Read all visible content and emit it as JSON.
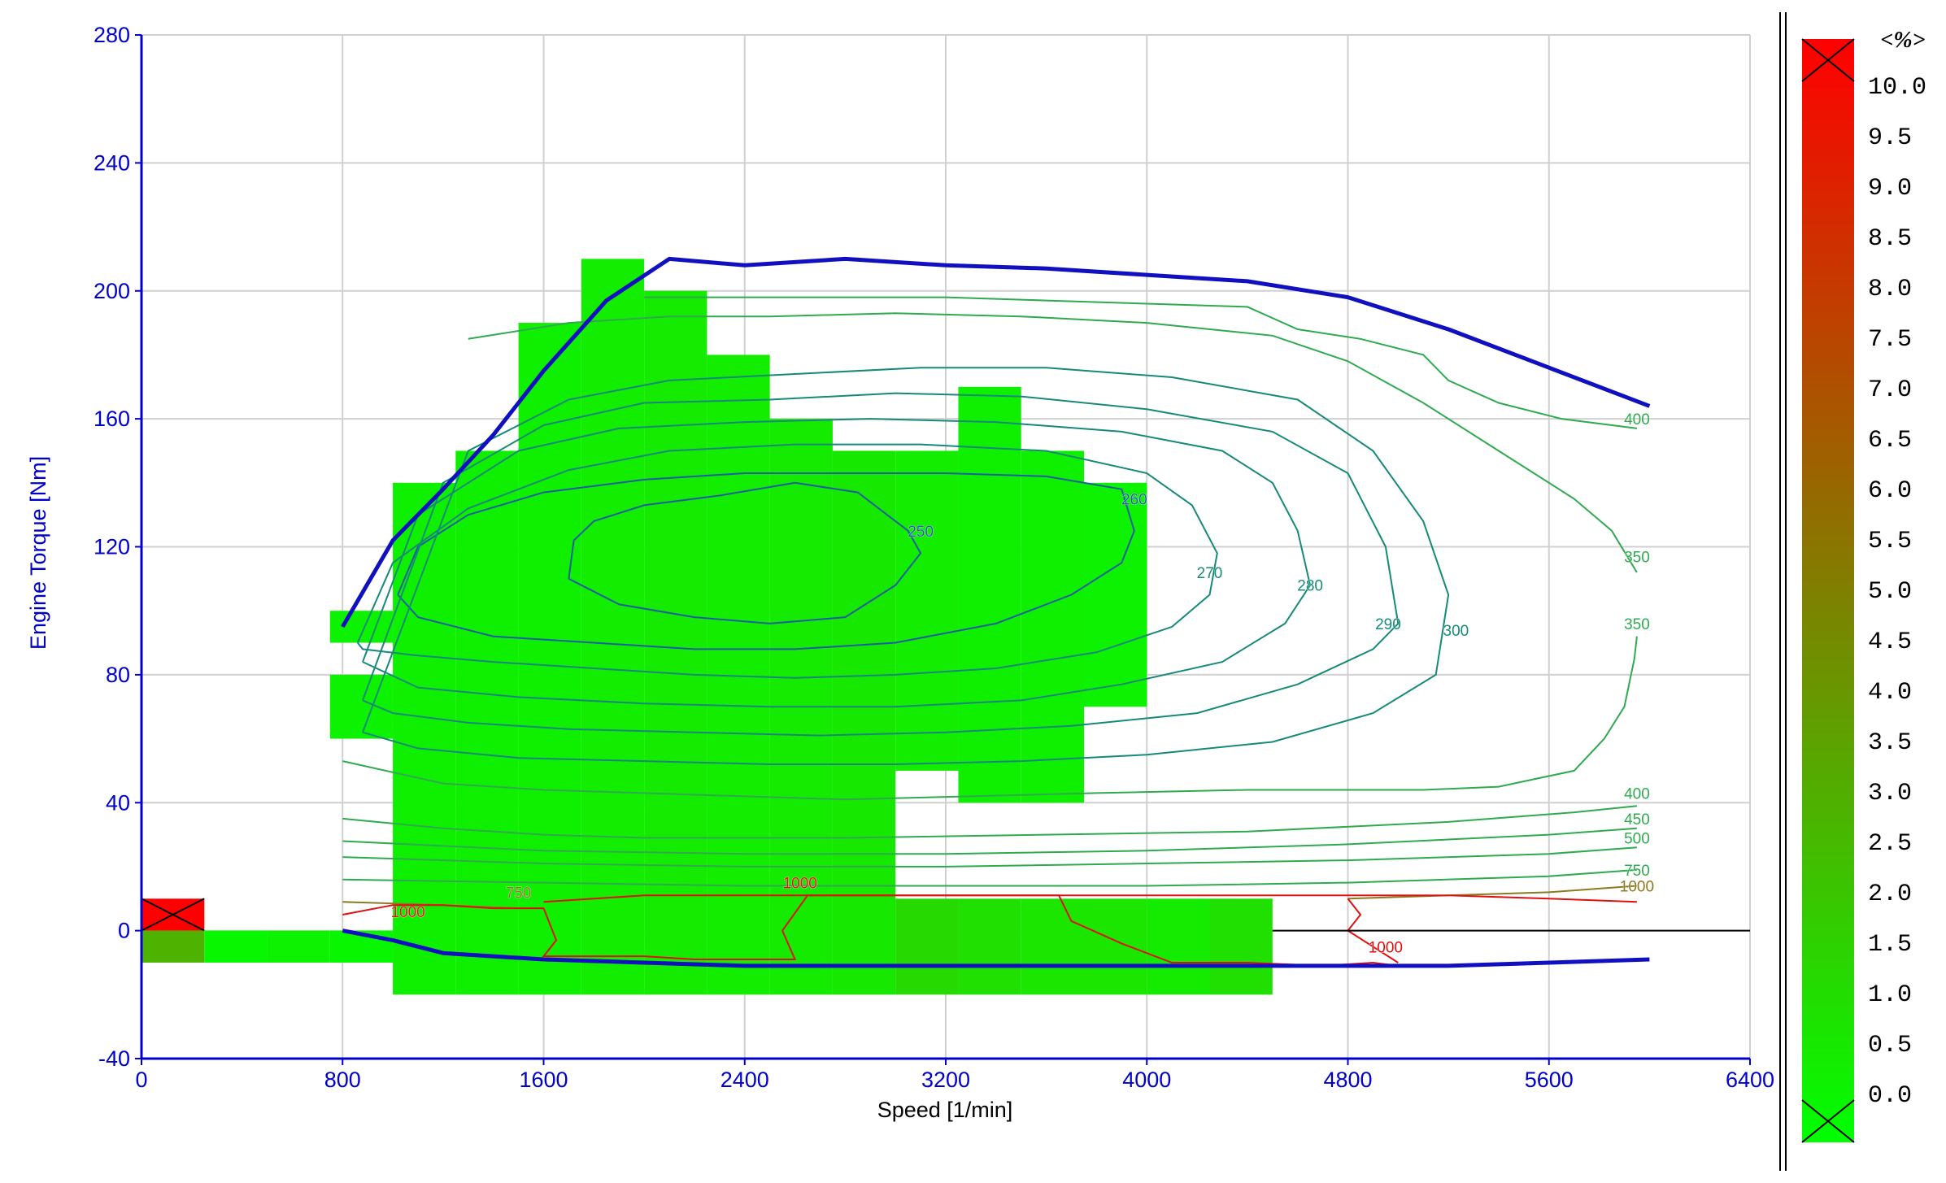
{
  "colors": {
    "axis": "#0000cc",
    "grid": "#d0d0d0",
    "boundary": "#1010c0",
    "zero_line": "#000000",
    "cell_low": "#00ff00",
    "cell_high": "#ff0000",
    "contour_green": "#2faa50",
    "contour_teal": "#168a78",
    "contour_blue": "#1b5fa0",
    "contour_red": "#e01010",
    "contour_olive": "#8a7a20"
  },
  "chart_data": {
    "type": "heatmap",
    "xlabel": "Speed [1/min]",
    "ylabel": "Engine Torque [Nm]",
    "xlim": [
      0,
      6400
    ],
    "ylim": [
      -40,
      280
    ],
    "xticks": [
      "0",
      "800",
      "1600",
      "2400",
      "3200",
      "4000",
      "4800",
      "5600",
      "6400"
    ],
    "yticks": [
      "-40",
      "0",
      "40",
      "80",
      "120",
      "160",
      "200",
      "240",
      "280"
    ],
    "grid": true,
    "color_scale": {
      "unit_label": "<%>",
      "labels": [
        "10.0",
        "9.5",
        "9.0",
        "8.5",
        "8.0",
        "7.5",
        "7.0",
        "6.5",
        "6.0",
        "5.5",
        "5.0",
        "4.5",
        "4.0",
        "3.5",
        "3.0",
        "2.5",
        "2.0",
        "1.5",
        "1.0",
        "0.5",
        "0.0"
      ],
      "min": 0,
      "max": 10
    },
    "cells": [
      {
        "x0": 0,
        "x1": 250,
        "y0": 0,
        "y1": 10,
        "value": 10.0
      },
      {
        "x0": 0,
        "x1": 250,
        "y0": -10,
        "y1": 0,
        "value": 3.0
      },
      {
        "x0": 250,
        "x1": 500,
        "y0": -10,
        "y1": 0,
        "value": 0.3
      },
      {
        "x0": 500,
        "x1": 750,
        "y0": -10,
        "y1": 0,
        "value": 0.5
      },
      {
        "x0": 750,
        "x1": 1000,
        "y0": -10,
        "y1": 0,
        "value": 0.3
      },
      {
        "x0": 750,
        "x1": 1000,
        "y0": 90,
        "y1": 100,
        "value": 0.5
      },
      {
        "x0": 750,
        "x1": 1000,
        "y0": 60,
        "y1": 80,
        "value": 0.5
      },
      {
        "x0": 1000,
        "x1": 1250,
        "y0": -20,
        "y1": 140,
        "value": 0.6
      },
      {
        "x0": 1250,
        "x1": 1500,
        "y0": -20,
        "y1": 150,
        "value": 0.6
      },
      {
        "x0": 1500,
        "x1": 1750,
        "y0": -20,
        "y1": 190,
        "value": 0.6
      },
      {
        "x0": 1750,
        "x1": 2000,
        "y0": -20,
        "y1": 210,
        "value": 0.7
      },
      {
        "x0": 2000,
        "x1": 2250,
        "y0": -20,
        "y1": 200,
        "value": 0.8
      },
      {
        "x0": 2250,
        "x1": 2500,
        "y0": -20,
        "y1": 180,
        "value": 0.7
      },
      {
        "x0": 2500,
        "x1": 2750,
        "y0": -20,
        "y1": 160,
        "value": 0.8
      },
      {
        "x0": 2750,
        "x1": 3000,
        "y0": -20,
        "y1": 150,
        "value": 0.9
      },
      {
        "x0": 3000,
        "x1": 3250,
        "y0": -20,
        "y1": 10,
        "value": 1.5
      },
      {
        "x0": 3000,
        "x1": 3250,
        "y0": 50,
        "y1": 150,
        "value": 0.7
      },
      {
        "x0": 3250,
        "x1": 3500,
        "y0": -20,
        "y1": 10,
        "value": 1.2
      },
      {
        "x0": 3250,
        "x1": 3500,
        "y0": 40,
        "y1": 170,
        "value": 0.6
      },
      {
        "x0": 3500,
        "x1": 3750,
        "y0": -20,
        "y1": 10,
        "value": 1.0
      },
      {
        "x0": 3500,
        "x1": 3750,
        "y0": 40,
        "y1": 150,
        "value": 0.6
      },
      {
        "x0": 3750,
        "x1": 4000,
        "y0": -20,
        "y1": 10,
        "value": 1.0
      },
      {
        "x0": 3750,
        "x1": 4000,
        "y0": 70,
        "y1": 140,
        "value": 0.5
      },
      {
        "x0": 4000,
        "x1": 4250,
        "y0": -20,
        "y1": 10,
        "value": 0.8
      },
      {
        "x0": 4250,
        "x1": 4500,
        "y0": -20,
        "y1": 10,
        "value": 1.2
      }
    ],
    "boundary_lines": [
      {
        "x": [
          800,
          1000,
          1200,
          1400,
          1600,
          1850,
          2100,
          2400,
          2800,
          3200,
          3600,
          4000,
          4400,
          4800,
          5200,
          5600,
          6000
        ],
        "y": [
          95,
          122,
          138,
          155,
          175,
          197,
          210,
          208,
          210,
          208,
          207,
          205,
          203,
          198,
          188,
          176,
          164
        ]
      },
      {
        "x": [
          800,
          1000,
          1200,
          1600,
          2000,
          2400,
          3200,
          4000,
          4800,
          5200,
          5600,
          6000
        ],
        "y": [
          0,
          -3,
          -7,
          -9,
          -10,
          -11,
          -11,
          -11,
          -11,
          -11,
          -10,
          -9
        ]
      }
    ],
    "zero_line": {
      "x": [
        4500,
        6400
      ],
      "y": [
        0,
        0
      ]
    },
    "contours": [
      {
        "label": "250",
        "color": "contour_blue",
        "label_x": 3100,
        "label_y": 125,
        "x": [
          1700,
          1720,
          1800,
          2000,
          2300,
          2600,
          2850,
          3050,
          3100,
          3000,
          2800,
          2500,
          2200,
          1900,
          1700
        ],
        "y": [
          110,
          122,
          128,
          133,
          136,
          140,
          137,
          125,
          118,
          108,
          98,
          96,
          98,
          102,
          110
        ]
      },
      {
        "label": "260",
        "color": "contour_blue",
        "label_x": 3950,
        "label_y": 135,
        "x": [
          1020,
          1100,
          1300,
          1600,
          2000,
          2400,
          2800,
          3200,
          3600,
          3900,
          3950,
          3900,
          3700,
          3400,
          3000,
          2600,
          2200,
          1800,
          1400,
          1100,
          1020
        ],
        "y": [
          105,
          120,
          130,
          137,
          141,
          143,
          143,
          143,
          142,
          138,
          125,
          115,
          105,
          96,
          90,
          88,
          88,
          90,
          92,
          98,
          105
        ]
      },
      {
        "label": "270",
        "color": "contour_teal",
        "label_x": 4250,
        "label_y": 112,
        "x": [
          860,
          1000,
          1300,
          1700,
          2100,
          2600,
          3100,
          3600,
          4000,
          4180,
          4280,
          4250,
          4100,
          3800,
          3400,
          3000,
          2600,
          2200,
          1800,
          1400,
          1100,
          880,
          860
        ],
        "y": [
          90,
          115,
          132,
          144,
          150,
          152,
          152,
          150,
          143,
          133,
          118,
          105,
          95,
          87,
          82,
          80,
          79,
          80,
          82,
          84,
          86,
          88,
          90
        ]
      },
      {
        "label": "280",
        "color": "contour_teal",
        "label_x": 4650,
        "label_y": 108,
        "x": [
          880,
          1100,
          1500,
          1900,
          2400,
          2900,
          3400,
          3900,
          4300,
          4500,
          4600,
          4650,
          4550,
          4300,
          3900,
          3500,
          3000,
          2500,
          2000,
          1500,
          1100,
          880
        ],
        "y": [
          84,
          130,
          150,
          157,
          159,
          160,
          159,
          156,
          150,
          140,
          125,
          108,
          96,
          84,
          77,
          72,
          70,
          70,
          71,
          73,
          76,
          84
        ]
      },
      {
        "label": "290",
        "color": "contour_teal",
        "label_x": 4960,
        "label_y": 96,
        "x": [
          880,
          1200,
          1600,
          2000,
          2500,
          3000,
          3500,
          4000,
          4500,
          4800,
          4950,
          5000,
          4900,
          4600,
          4200,
          3700,
          3200,
          2700,
          2200,
          1700,
          1300,
          1000,
          880
        ],
        "y": [
          72,
          140,
          158,
          165,
          166,
          168,
          167,
          163,
          156,
          143,
          120,
          96,
          88,
          77,
          68,
          64,
          62,
          61,
          62,
          63,
          65,
          68,
          72
        ]
      },
      {
        "label": "300",
        "color": "contour_teal",
        "label_x": 5230,
        "label_y": 94,
        "x": [
          880,
          1300,
          1700,
          2100,
          2600,
          3100,
          3600,
          4100,
          4600,
          4900,
          5100,
          5200,
          5150,
          4900,
          4500,
          4000,
          3500,
          3000,
          2500,
          2000,
          1500,
          1100,
          880
        ],
        "y": [
          62,
          150,
          166,
          172,
          174,
          176,
          176,
          173,
          166,
          150,
          128,
          105,
          80,
          68,
          59,
          55,
          53,
          52,
          52,
          53,
          54,
          57,
          62
        ]
      },
      {
        "label": "350",
        "color": "contour_green",
        "label_x": 5950,
        "label_y": 96,
        "x": [
          800,
          1200,
          1600,
          2000,
          2400,
          2800,
          3300,
          3800,
          4400,
          4800,
          5100,
          5400,
          5700,
          5820,
          5900,
          5940,
          5950
        ],
        "y": [
          53,
          46,
          44,
          43,
          42,
          41,
          42,
          43,
          44,
          44,
          44,
          45,
          50,
          60,
          70,
          85,
          92
        ]
      },
      {
        "label": "350",
        "color": "contour_green",
        "label_x": 5950,
        "label_y": 117,
        "x": [
          1300,
          1700,
          2100,
          2500,
          3000,
          3500,
          4000,
          4500,
          4800,
          5100,
          5400,
          5700,
          5850,
          5950
        ],
        "y": [
          185,
          190,
          192,
          192,
          193,
          192,
          190,
          186,
          178,
          165,
          150,
          135,
          125,
          112
        ]
      },
      {
        "label": "400",
        "color": "contour_green",
        "label_x": 5950,
        "label_y": 160,
        "x": [
          2000,
          2400,
          2800,
          3200,
          3600,
          4000,
          4400,
          4600,
          4850,
          5100,
          5200,
          5400,
          5650,
          5950
        ],
        "y": [
          198,
          198,
          198,
          198,
          197,
          196,
          195,
          188,
          185,
          180,
          172,
          165,
          160,
          157
        ]
      },
      {
        "label": "400",
        "color": "contour_green",
        "label_x": 5950,
        "label_y": 43,
        "x": [
          800,
          1200,
          1600,
          2000,
          2800,
          3600,
          4400,
          5200,
          5700,
          5950
        ],
        "y": [
          35,
          32,
          30,
          29,
          29,
          30,
          31,
          34,
          37,
          39
        ]
      },
      {
        "label": "450",
        "color": "contour_green",
        "label_x": 5950,
        "label_y": 35,
        "x": [
          800,
          1600,
          2400,
          3200,
          4000,
          4800,
          5600,
          5950
        ],
        "y": [
          28,
          25,
          24,
          24,
          25,
          27,
          30,
          32
        ]
      },
      {
        "label": "500",
        "color": "contour_green",
        "label_x": 5950,
        "label_y": 29,
        "x": [
          800,
          1600,
          2400,
          3200,
          4000,
          4800,
          5600,
          5950
        ],
        "y": [
          23,
          21,
          20,
          20,
          21,
          22,
          24,
          26
        ]
      },
      {
        "label": "750",
        "color": "contour_green",
        "label_x": 5950,
        "label_y": 19,
        "x": [
          800,
          1600,
          2400,
          3200,
          4000,
          4800,
          5600,
          5950
        ],
        "y": [
          16,
          15,
          14,
          14,
          14,
          15,
          17,
          19
        ]
      },
      {
        "label": "750",
        "color": "contour_olive",
        "label_x": 1500,
        "label_y": 12,
        "x": [
          800,
          1200,
          1500,
          1600
        ],
        "y": [
          9,
          8,
          7,
          7
        ]
      },
      {
        "label": "1000",
        "color": "contour_olive",
        "label_x": 5950,
        "label_y": 14,
        "x": [
          4800,
          5200,
          5600,
          5950
        ],
        "y": [
          10,
          11,
          12,
          14
        ]
      },
      {
        "label": "1000",
        "color": "contour_red",
        "label_x": 1060,
        "label_y": 6,
        "x": [
          800,
          1000,
          1200,
          1400,
          1600,
          1650,
          1600,
          1800,
          2000,
          2200,
          2600,
          2550,
          2650,
          2950,
          3300,
          3650,
          3700,
          3900,
          4100,
          4400,
          4700,
          4900,
          5000
        ],
        "y": [
          5,
          8,
          8,
          7,
          7,
          -3,
          -8,
          -8,
          -8,
          -9,
          -9,
          0,
          11,
          11,
          11,
          11,
          3,
          -4,
          -10,
          -10,
          -11,
          -10,
          -11
        ]
      },
      {
        "label": "1000",
        "color": "contour_red",
        "label_x": 2620,
        "label_y": 15,
        "x": [
          1600,
          1800,
          2000,
          2200,
          2400,
          2600,
          2800,
          3000,
          3300,
          3600,
          4000,
          4400,
          4800,
          5200,
          5600,
          5950
        ],
        "y": [
          9,
          10,
          11,
          11,
          11,
          11,
          11,
          11,
          11,
          11,
          11,
          11,
          11,
          11,
          10,
          9
        ]
      },
      {
        "label": "1000",
        "color": "contour_red",
        "label_x": 4950,
        "label_y": -5,
        "x": [
          4800,
          4850,
          4800,
          4900,
          5000
        ],
        "y": [
          10,
          5,
          0,
          -5,
          -10
        ]
      }
    ]
  }
}
